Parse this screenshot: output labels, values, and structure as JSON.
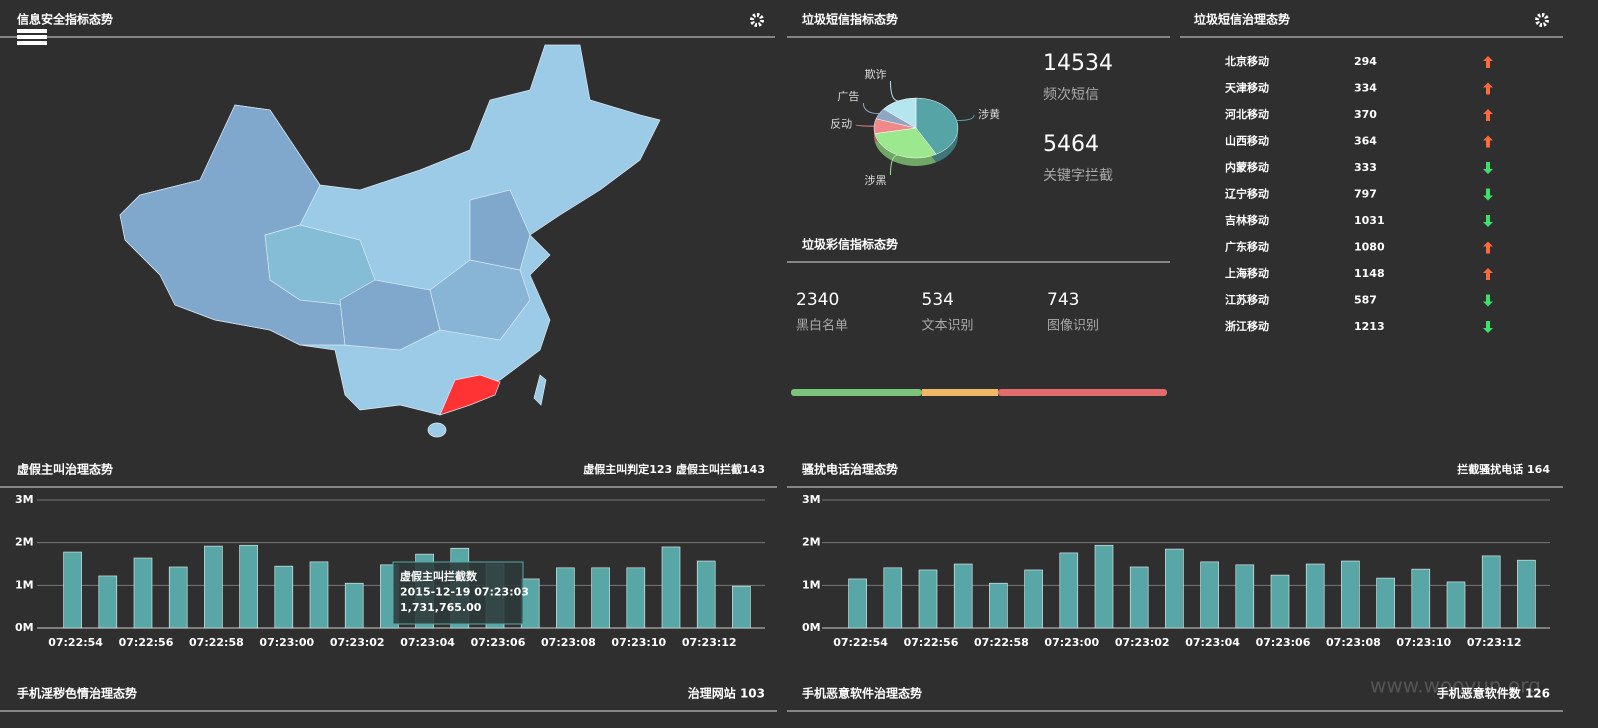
{
  "map": {
    "title": "信息安全指标态势"
  },
  "sms_stats": {
    "items": [
      {
        "value": 14534,
        "label": "频次短信"
      },
      {
        "value": 5464,
        "label": "关键字拦截"
      }
    ]
  },
  "mms": {
    "title": "垃圾彩信指标态势",
    "items": [
      {
        "value": 2340,
        "label": "黑白名单"
      },
      {
        "value": 534,
        "label": "文本识别"
      },
      {
        "value": 743,
        "label": "图像识别"
      }
    ]
  },
  "sms_table": {
    "title": "垃圾短信治理态势",
    "rows": [
      {
        "name": "北京移动",
        "value": 294,
        "trend": "up"
      },
      {
        "name": "天津移动",
        "value": 334,
        "trend": "up"
      },
      {
        "name": "河北移动",
        "value": 370,
        "trend": "up"
      },
      {
        "name": "山西移动",
        "value": 364,
        "trend": "up"
      },
      {
        "name": "内蒙移动",
        "value": 333,
        "trend": "down"
      },
      {
        "name": "辽宁移动",
        "value": 797,
        "trend": "down"
      },
      {
        "name": "吉林移动",
        "value": 1031,
        "trend": "down"
      },
      {
        "name": "广东移动",
        "value": 1080,
        "trend": "up"
      },
      {
        "name": "上海移动",
        "value": 1148,
        "trend": "up"
      },
      {
        "name": "江苏移动",
        "value": 587,
        "trend": "down"
      },
      {
        "name": "浙江移动",
        "value": 1213,
        "trend": "down"
      }
    ]
  },
  "bottom_panels": [
    {
      "title": "手机淫秽色情治理态势",
      "note": "治理网站 103"
    },
    {
      "title": "手机恶意软件治理态势",
      "note": "手机恶意软件数 126"
    }
  ],
  "watermark": "www.wooyun.org",
  "chart_data": [
    {
      "type": "pie",
      "title": "垃圾短信指标态势",
      "categories": [
        "涉黄",
        "涉黑",
        "反动",
        "广告",
        "欺诈"
      ],
      "values": [
        42,
        30,
        8,
        6,
        14
      ],
      "colors": [
        "#57a4a6",
        "#9be88e",
        "#f08a8a",
        "#8ea5c4",
        "#b5e6ef"
      ]
    },
    {
      "type": "bar",
      "title": "虚假主叫治理态势",
      "subtitle": "虚假主叫判定123 虚假主叫拦截143",
      "categories": [
        "07:22:54",
        null,
        "07:22:56",
        null,
        "07:22:58",
        null,
        "07:23:00",
        null,
        "07:23:02",
        null,
        "07:23:04",
        null,
        "07:23:06",
        null,
        "07:23:08",
        null,
        "07:23:10",
        null,
        "07:23:12",
        null
      ],
      "values": [
        1780000,
        1220000,
        1640000,
        1430000,
        1920000,
        1940000,
        1450000,
        1550000,
        1050000,
        1480000,
        1731765,
        1870000,
        1500000,
        1150000,
        1410000,
        1410000,
        1410000,
        1900000,
        1570000,
        980000
      ],
      "color": "#58a6a6",
      "ylim": [
        0,
        3000000
      ],
      "yticks": [
        {
          "value": 0,
          "label": "0M"
        },
        {
          "value": 1000000,
          "label": "1M"
        },
        {
          "value": 2000000,
          "label": "2M"
        },
        {
          "value": 3000000,
          "label": "3M"
        }
      ],
      "grid": true,
      "tooltip": {
        "series": "虚假主叫拦截数",
        "x": "2015-12-19 07:23:03",
        "value": "1,731,765.00"
      }
    },
    {
      "type": "bar",
      "title": "骚扰电话治理态势",
      "subtitle": "拦截骚扰电话 164",
      "categories": [
        "07:22:54",
        null,
        "07:22:56",
        null,
        "07:22:58",
        null,
        "07:23:00",
        null,
        "07:23:02",
        null,
        "07:23:04",
        null,
        "07:23:06",
        null,
        "07:23:08",
        null,
        "07:23:10",
        null,
        "07:23:12",
        null
      ],
      "values": [
        1150000,
        1410000,
        1360000,
        1500000,
        1050000,
        1360000,
        1760000,
        1940000,
        1430000,
        1850000,
        1550000,
        1480000,
        1240000,
        1500000,
        1570000,
        1170000,
        1380000,
        1080000,
        1690000,
        1590000
      ],
      "color": "#58a6a6",
      "ylim": [
        0,
        3000000
      ],
      "yticks": [
        {
          "value": 0,
          "label": "0M"
        },
        {
          "value": 1000000,
          "label": "1M"
        },
        {
          "value": 2000000,
          "label": "2M"
        },
        {
          "value": 3000000,
          "label": "3M"
        }
      ],
      "grid": true
    }
  ]
}
